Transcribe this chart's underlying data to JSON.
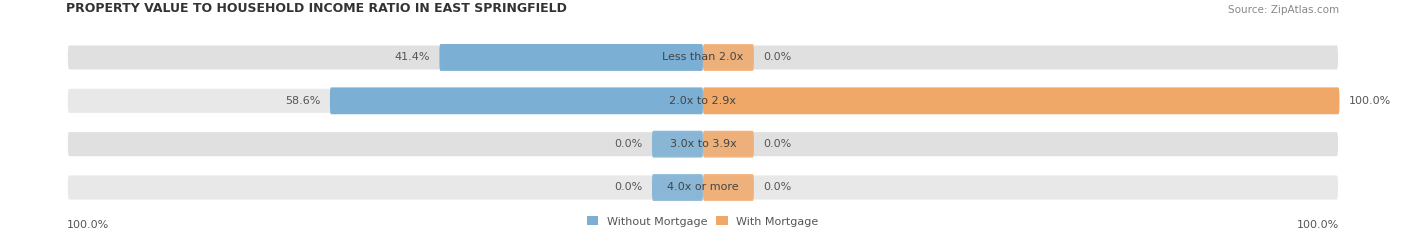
{
  "title": "PROPERTY VALUE TO HOUSEHOLD INCOME RATIO IN EAST SPRINGFIELD",
  "source": "Source: ZipAtlas.com",
  "categories": [
    "Less than 2.0x",
    "2.0x to 2.9x",
    "3.0x to 3.9x",
    "4.0x or more"
  ],
  "without_mortgage": [
    41.4,
    58.6,
    0.0,
    0.0
  ],
  "with_mortgage": [
    0.0,
    100.0,
    0.0,
    0.0
  ],
  "color_without": "#7bafd4",
  "color_with": "#f0a868",
  "bg_colors": [
    "#e0e0e0",
    "#e8e8e8",
    "#e0e0e0",
    "#e8e8e8"
  ],
  "title_fontsize": 9,
  "label_fontsize": 8,
  "source_fontsize": 7.5,
  "legend_fontsize": 8,
  "left_label_100": "100.0%",
  "right_label_100": "100.0%",
  "figsize": [
    14.06,
    2.33
  ],
  "dpi": 100,
  "stub_size": 8.0,
  "max_val": 100.0
}
